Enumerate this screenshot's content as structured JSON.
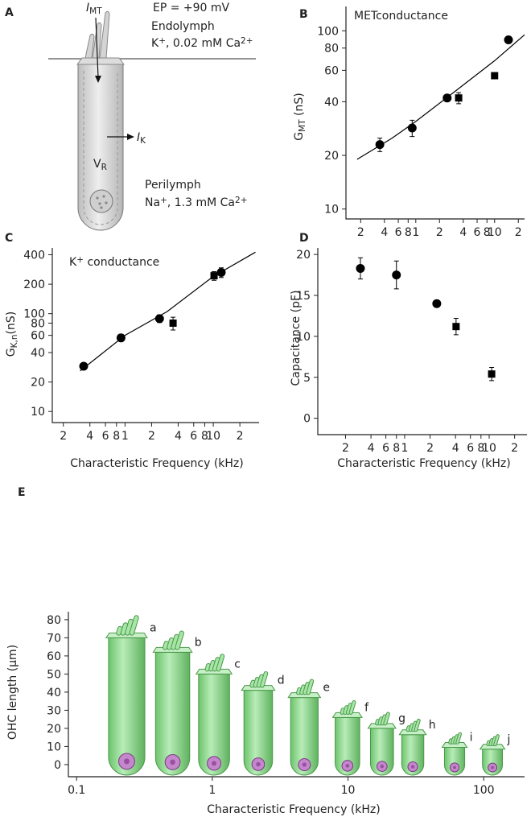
{
  "diagram": {
    "label": "A",
    "mt_current": [
      {
        "t": "I"
      },
      {
        "sub": "MT"
      }
    ],
    "ep": "EP = +90 mV",
    "endolymph": "Endolymph",
    "endolymph_ions": [
      {
        "t": "K"
      },
      {
        "sup": "+"
      },
      {
        "t": ", 0.02 mM Ca"
      },
      {
        "sup": "2+"
      }
    ],
    "k_current": [
      {
        "t": "I"
      },
      {
        "sub": "K"
      }
    ],
    "potential": [
      {
        "t": "V"
      },
      {
        "sub": "R"
      }
    ],
    "perilymph": "Perilymph",
    "perilymph_ions": [
      {
        "t": "Na"
      },
      {
        "sup": "+"
      },
      {
        "t": ", 1.3 mM Ca"
      },
      {
        "sup": "2+"
      }
    ]
  },
  "chart_data": [
    {
      "type": "scatter",
      "label": "B",
      "annotation": "METconductance",
      "ylabel": [
        {
          "t": "G"
        },
        {
          "sub": "MT"
        },
        {
          "t": " (nS)"
        }
      ],
      "xlog": true,
      "ylog": true,
      "xlim": [
        0.13,
        24
      ],
      "ylim": [
        8.8,
        137
      ],
      "xticks": [
        {
          "value": 0.2,
          "label": "2"
        },
        {
          "value": 0.4,
          "label": "4"
        },
        {
          "value": 0.6,
          "label": "6"
        },
        {
          "value": 0.8,
          "label": "8"
        },
        1,
        {
          "value": 2,
          "label": "2"
        },
        {
          "value": 4,
          "label": "4"
        },
        {
          "value": 6,
          "label": "6"
        },
        {
          "value": 8,
          "label": "8"
        },
        10,
        {
          "value": 20,
          "label": "2"
        }
      ],
      "yticks": [
        10,
        20,
        40,
        60,
        80,
        100
      ],
      "series": [
        {
          "style": "circle",
          "color": "#000000",
          "x": [
            0.35,
            0.9,
            2.5,
            15
          ],
          "values": [
            23,
            28.5,
            42,
            89
          ],
          "errors": [
            2,
            3,
            null,
            null
          ]
        },
        {
          "style": "square",
          "color": "#000000",
          "x": [
            3.5,
            10
          ],
          "values": [
            42,
            56
          ],
          "errors": [
            3,
            null
          ]
        },
        {
          "style": "line",
          "color": "#000000",
          "x": [
            0.18,
            0.5,
            1,
            3,
            10,
            24
          ],
          "values": [
            19,
            25,
            31,
            45,
            68,
            95
          ]
        }
      ]
    },
    {
      "type": "scatter",
      "label": "C",
      "annotation": [
        {
          "t": "K"
        },
        {
          "sup": "+"
        },
        {
          "t": " conductance"
        }
      ],
      "ylabel": [
        {
          "t": "G"
        },
        {
          "sub": "K,n"
        },
        {
          "t": "(nS)"
        }
      ],
      "xlabel": "Characteristic Frequency (kHz)",
      "xlog": true,
      "ylog": true,
      "xlim": [
        0.15,
        33
      ],
      "ylim": [
        7.7,
        470
      ],
      "xticks": [
        {
          "value": 0.2,
          "label": "2"
        },
        {
          "value": 0.4,
          "label": "4"
        },
        {
          "value": 0.6,
          "label": "6"
        },
        {
          "value": 0.8,
          "label": "8"
        },
        1,
        {
          "value": 2,
          "label": "2"
        },
        {
          "value": 4,
          "label": "4"
        },
        {
          "value": 6,
          "label": "6"
        },
        {
          "value": 8,
          "label": "8"
        },
        10,
        {
          "value": 20,
          "label": "2"
        }
      ],
      "yticks": [
        10,
        20,
        40,
        60,
        80,
        100,
        200,
        400
      ],
      "series": [
        {
          "style": "circle",
          "color": "#000000",
          "x": [
            0.34,
            0.9,
            2.46,
            12.3
          ],
          "values": [
            29,
            56.5,
            89,
            264
          ],
          "errors": [
            null,
            null,
            8,
            30
          ]
        },
        {
          "style": "square",
          "color": "#000000",
          "x": [
            3.5,
            10.2
          ],
          "values": [
            80,
            244
          ],
          "errors": [
            12,
            25
          ]
        },
        {
          "style": "line",
          "color": "#000000",
          "x": [
            0.31,
            1,
            3,
            10,
            30
          ],
          "values": [
            26,
            60,
            105,
            240,
            425
          ]
        }
      ]
    },
    {
      "type": "scatter",
      "label": "D",
      "ylabel": "Capacitance (pF)",
      "xlabel": "Characteristic Frequency (kHz)",
      "xlog": true,
      "ylog": false,
      "xlim": [
        0.094,
        28
      ],
      "ylim": [
        -2,
        20.8
      ],
      "xticks": [
        {
          "value": 0.2,
          "label": "2"
        },
        {
          "value": 0.4,
          "label": "4"
        },
        {
          "value": 0.6,
          "label": "6"
        },
        {
          "value": 0.8,
          "label": "8"
        },
        1,
        {
          "value": 2,
          "label": "2"
        },
        {
          "value": 4,
          "label": "4"
        },
        {
          "value": 6,
          "label": "6"
        },
        {
          "value": 8,
          "label": "8"
        },
        10,
        {
          "value": 20,
          "label": "2"
        }
      ],
      "yticks": [
        0,
        5,
        10,
        15,
        20
      ],
      "series": [
        {
          "style": "circle",
          "color": "#000000",
          "x": [
            0.3,
            0.8,
            2.4
          ],
          "values": [
            18.3,
            17.5,
            14.0
          ],
          "errors": [
            1.3,
            1.7,
            null
          ]
        },
        {
          "style": "square",
          "color": "#000000",
          "x": [
            4.06,
            10.7
          ],
          "values": [
            11.2,
            5.4
          ],
          "errors": [
            1.0,
            0.8
          ]
        }
      ]
    },
    {
      "type": "bar",
      "label": "E",
      "ylabel": "OHC length (µm)",
      "xlabel": "Characteristic Frequency (kHz)",
      "xlog": true,
      "ylog": false,
      "xlim": [
        0.087,
        200
      ],
      "ylim": [
        -6.7,
        84.4
      ],
      "xticks": [
        0.1,
        1,
        10,
        100
      ],
      "yticks": [
        0,
        10,
        20,
        30,
        40,
        50,
        60,
        70,
        80
      ],
      "color": "#9fe09f",
      "categories": [
        "a",
        "b",
        "c",
        "d",
        "e",
        "f",
        "g",
        "h",
        "i",
        "j"
      ],
      "x": [
        0.234,
        0.51,
        1.03,
        2.18,
        4.77,
        9.9,
        17.8,
        30,
        61,
        116
      ],
      "values": [
        70,
        62,
        50,
        41,
        37,
        26,
        20,
        16.5,
        9.5,
        8.5
      ]
    }
  ]
}
